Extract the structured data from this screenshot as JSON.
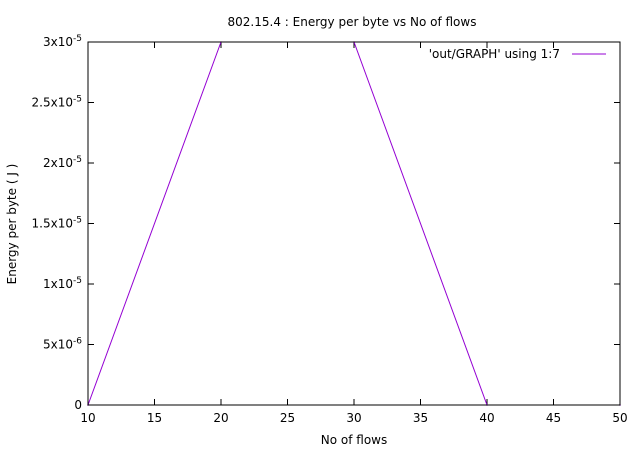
{
  "chart_data": {
    "type": "line",
    "title": "802.15.4 : Energy per byte vs No of flows",
    "xlabel": "No of flows",
    "ylabel": "Energy per byte ( J )",
    "xlim": [
      10,
      50
    ],
    "ylim": [
      0,
      3e-05
    ],
    "x_ticks": [
      10,
      15,
      20,
      25,
      30,
      35,
      40,
      45,
      50
    ],
    "y_ticks": [
      {
        "value": 0,
        "mantissa": "0",
        "exponent": ""
      },
      {
        "value": 5e-06,
        "mantissa": "5x10",
        "exponent": "-6"
      },
      {
        "value": 1e-05,
        "mantissa": "1x10",
        "exponent": "-5"
      },
      {
        "value": 1.5e-05,
        "mantissa": "1.5x10",
        "exponent": "-5"
      },
      {
        "value": 2e-05,
        "mantissa": "2x10",
        "exponent": "-5"
      },
      {
        "value": 2.5e-05,
        "mantissa": "2.5x10",
        "exponent": "-5"
      },
      {
        "value": 3e-05,
        "mantissa": "3x10",
        "exponent": "-5"
      }
    ],
    "grid": false,
    "legend_position": "top-right",
    "series": [
      {
        "name": "'out/GRAPH' using 1:7",
        "color": "#9400d3",
        "x": [
          10,
          20,
          30,
          40,
          50
        ],
        "y": [
          0,
          3e-05,
          3e-05,
          0,
          0
        ]
      }
    ]
  }
}
